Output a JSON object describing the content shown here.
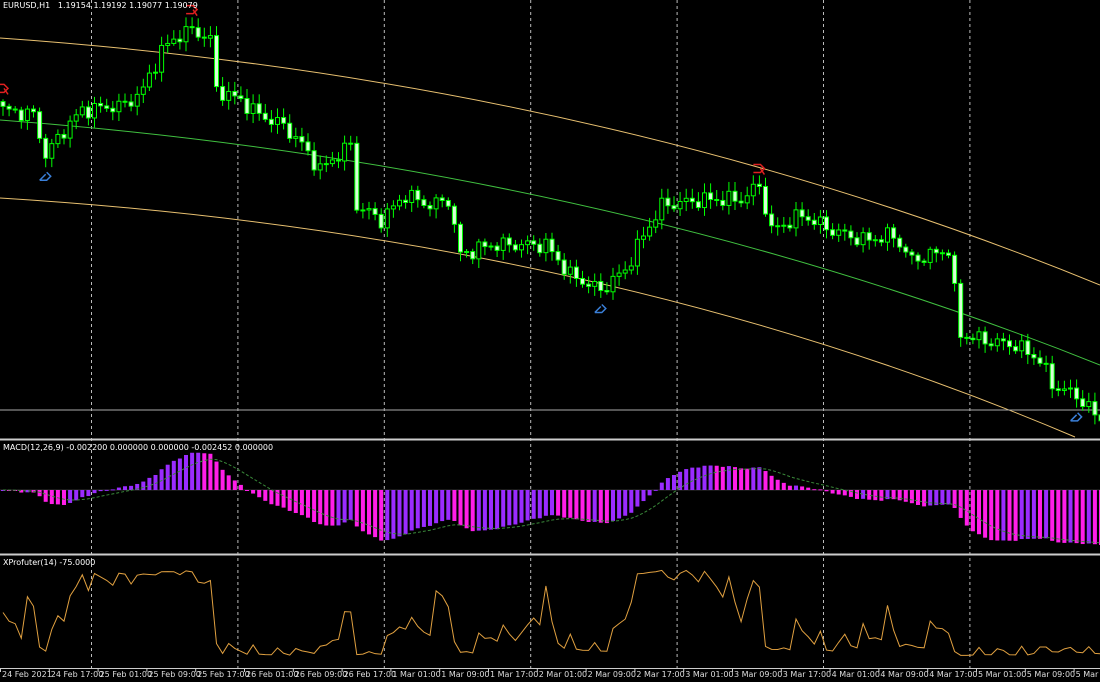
{
  "header": {
    "symbol": "EURUSD,H1",
    "ohlc": "1.19154 1.19192 1.19077 1.19079"
  },
  "macd": {
    "label": "MACD(12,26,9) -0.002200 0.000000 0.000000 -0.002452 0.000000",
    "colors": {
      "up": "#9a2cff",
      "down": "#ff1ee8",
      "signal": "#3a8a3a"
    }
  },
  "oscillator": {
    "label": "XProfuter(14) -75.0000",
    "color": "#e0a040"
  },
  "colors": {
    "background": "#000000",
    "candle": "#00ff00",
    "channel_outer": "#e8c070",
    "channel_mid": "#40c040",
    "sell_arrow": "#e02020",
    "buy_arrow": "#3a7fd8"
  },
  "chart_data": {
    "type": "candlestick",
    "ylim": [
      1.1896,
      1.226
    ],
    "last_close": 1.19079,
    "close_path": [
      [
        0,
        1.2168
      ],
      [
        5,
        1.2164
      ],
      [
        7,
        1.213
      ],
      [
        10,
        1.2151
      ],
      [
        13,
        1.2168
      ],
      [
        20,
        1.2172
      ],
      [
        23,
        1.2185
      ],
      [
        26,
        1.2218
      ],
      [
        29,
        1.2231
      ],
      [
        31,
        1.2235
      ],
      [
        34,
        1.2227
      ],
      [
        35,
        1.2185
      ],
      [
        39,
        1.2176
      ],
      [
        42,
        1.2164
      ],
      [
        46,
        1.2155
      ],
      [
        49,
        1.2139
      ],
      [
        52,
        1.2118
      ],
      [
        57,
        1.2139
      ],
      [
        58,
        1.2088
      ],
      [
        62,
        1.2076
      ],
      [
        66,
        1.2097
      ],
      [
        70,
        1.2088
      ],
      [
        73,
        1.2093
      ],
      [
        75,
        1.2047
      ],
      [
        80,
        1.2055
      ],
      [
        89,
        1.2055
      ],
      [
        93,
        1.203
      ],
      [
        98,
        1.2017
      ],
      [
        102,
        1.2034
      ],
      [
        105,
        1.2063
      ],
      [
        108,
        1.2088
      ],
      [
        115,
        1.2093
      ],
      [
        121,
        1.2093
      ],
      [
        124,
        1.2105
      ],
      [
        126,
        1.2067
      ],
      [
        131,
        1.208
      ],
      [
        136,
        1.2067
      ],
      [
        141,
        1.2059
      ],
      [
        146,
        1.2063
      ],
      [
        149,
        1.2042
      ],
      [
        155,
        1.2051
      ],
      [
        157,
        1.198
      ],
      [
        161,
        1.1975
      ],
      [
        166,
        1.1971
      ],
      [
        170,
        1.1959
      ],
      [
        172,
        1.1938
      ],
      [
        176,
        1.1929
      ],
      [
        180,
        1.19079
      ]
    ],
    "x_ticks": [
      "24 Feb 2021",
      "24 Feb 17:00",
      "25 Feb 01:00",
      "25 Feb 09:00",
      "25 Feb 17:00",
      "26 Feb 01:00",
      "26 Feb 09:00",
      "26 Feb 17:00",
      "1 Mar 01:00",
      "1 Mar 09:00",
      "1 Mar 17:00",
      "2 Mar 01:00",
      "2 Mar 09:00",
      "2 Mar 17:00",
      "3 Mar 01:00",
      "3 Mar 09:00",
      "3 Mar 17:00",
      "4 Mar 01:00",
      "4 Mar 09:00",
      "4 Mar 17:00",
      "5 Mar 01:00",
      "5 Mar 09:00",
      "5 Mar"
    ],
    "sell_signals": [
      0,
      31,
      124
    ],
    "buy_signals": [
      7,
      98,
      176
    ],
    "grid": true
  }
}
